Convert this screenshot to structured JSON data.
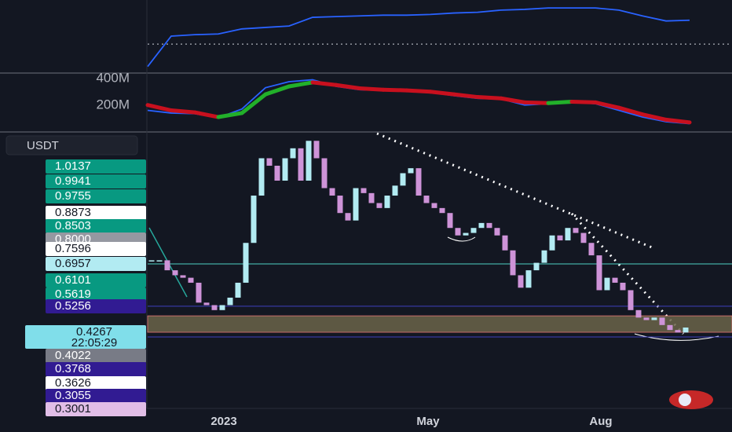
{
  "chart_data": [
    {
      "type": "candlestick",
      "y_label": "USDT",
      "categories": [
        null,
        null,
        null,
        null,
        null,
        null,
        null,
        null,
        null,
        null,
        "2023",
        null,
        null,
        null,
        null,
        null,
        null,
        null,
        null,
        null,
        null,
        null,
        null,
        null,
        null,
        null,
        null,
        null,
        null,
        null,
        null,
        null,
        null,
        null,
        null,
        null,
        "May",
        null,
        null,
        null,
        null,
        null,
        null,
        null,
        null,
        null,
        null,
        null,
        null,
        null,
        null,
        null,
        null,
        null,
        null,
        null,
        null,
        null,
        "Aug",
        null,
        null,
        null,
        null,
        null,
        null,
        null,
        null,
        null,
        null
      ],
      "values": [
        0.71,
        0.71,
        0.67,
        0.65,
        0.64,
        0.62,
        0.54,
        0.53,
        0.51,
        0.53,
        0.56,
        0.62,
        0.78,
        0.97,
        1.12,
        1.09,
        1.03,
        1.12,
        1.16,
        1.03,
        1.19,
        1.12,
        1,
        0.97,
        0.9,
        0.87,
        1,
        0.98,
        0.94,
        0.92,
        0.97,
        1.01,
        1.06,
        1.08,
        0.97,
        0.94,
        0.92,
        0.9,
        0.84,
        0.81,
        0.82,
        0.84,
        0.86,
        0.84,
        0.81,
        0.75,
        0.65,
        0.6,
        0.67,
        0.7,
        0.75,
        0.81,
        0.79,
        0.84,
        0.82,
        0.78,
        0.73,
        0.59,
        0.64,
        0.62,
        0.59,
        0.51,
        0.48,
        0.47,
        0.48,
        0.45,
        0.43,
        0.42,
        0.44
      ],
      "up_color": "#b2ebf2",
      "down_color": "#ce93d8",
      "ylim": [
        0.115,
        1.213
      ],
      "hlines": [
        {
          "value": 0.6957,
          "color": "#4dd0c4"
        },
        {
          "value": 0.5256,
          "color": "#3f3fbf"
        },
        {
          "value": 0.4022,
          "color": "#3f3fbf"
        }
      ],
      "zone": [
        0.421,
        0.487
      ],
      "zone_color": "#6b6449",
      "price_tags": [
        {
          "text": "1.0137",
          "color": "#089981",
          "text_color": "#ffffff"
        },
        {
          "text": "0.9941",
          "color": "#089981",
          "text_color": "#ffffff"
        },
        {
          "text": "0.9755",
          "color": "#089981",
          "text_color": "#ffffff"
        },
        {
          "text": "0.8873",
          "color": "#ffffff",
          "text_color": "#131722"
        },
        {
          "text": "0.8503",
          "color": "#089981",
          "text_color": "#ffffff"
        },
        {
          "text": "0.8000",
          "color": "#9598a1",
          "text_color": "#ffffff"
        },
        {
          "text": "0.7596",
          "color": "#ffffff",
          "text_color": "#131722"
        },
        {
          "text": "0.6957",
          "color": "#b2ebf2",
          "text_color": "#131722"
        },
        {
          "text": "0.6101",
          "color": "#089981",
          "text_color": "#ffffff"
        },
        {
          "text": "0.5619",
          "color": "#089981",
          "text_color": "#ffffff"
        },
        {
          "text": "0.5256",
          "color": "#311b92",
          "text_color": "#ffffff"
        },
        {
          "text": "0.4267",
          "sub": "22:05:29",
          "color": "#80deea",
          "text_color": "#131722"
        },
        {
          "text": "0.4022",
          "color": "#787b86",
          "text_color": "#ffffff"
        },
        {
          "text": "0.3768",
          "color": "#311b92",
          "text_color": "#ffffff"
        },
        {
          "text": "0.3626",
          "color": "#ffffff",
          "text_color": "#131722"
        },
        {
          "text": "0.3055",
          "color": "#311b92",
          "text_color": "#ffffff"
        },
        {
          "text": "0.3001",
          "color": "#e1bee7",
          "text_color": "#131722"
        }
      ]
    },
    {
      "type": "line",
      "values": [
        8,
        50,
        52,
        53,
        60,
        62,
        64,
        76,
        77,
        78,
        79,
        79,
        80,
        82,
        83,
        86,
        87,
        89,
        89,
        89,
        86,
        78,
        71,
        72
      ],
      "color": "#2962ff",
      "ylim": [
        0,
        100
      ],
      "hline": 39
    },
    {
      "type": "line",
      "ylim": [
        0,
        430000000
      ],
      "yticks": [
        {
          "value": 200000000,
          "label": "200M"
        },
        {
          "value": 400000000,
          "label": "400M"
        }
      ],
      "series": [
        {
          "color": "#2962ff",
          "values": [
            150000000,
            130000000,
            125000000,
            95000000,
            160000000,
            320000000,
            365000000,
            380000000,
            330000000,
            305000000,
            300000000,
            295000000,
            285000000,
            260000000,
            240000000,
            235000000,
            190000000,
            200000000,
            215000000,
            200000000,
            150000000,
            100000000,
            65000000,
            50000000
          ]
        },
        {
          "color": "#c8101e",
          "up_color": "#22b02a",
          "width": 5,
          "values": [
            190000000,
            150000000,
            135000000,
            100000000,
            130000000,
            270000000,
            330000000,
            360000000,
            340000000,
            315000000,
            305000000,
            300000000,
            290000000,
            270000000,
            250000000,
            240000000,
            210000000,
            205000000,
            215000000,
            210000000,
            170000000,
            120000000,
            80000000,
            60000000
          ]
        }
      ]
    }
  ]
}
